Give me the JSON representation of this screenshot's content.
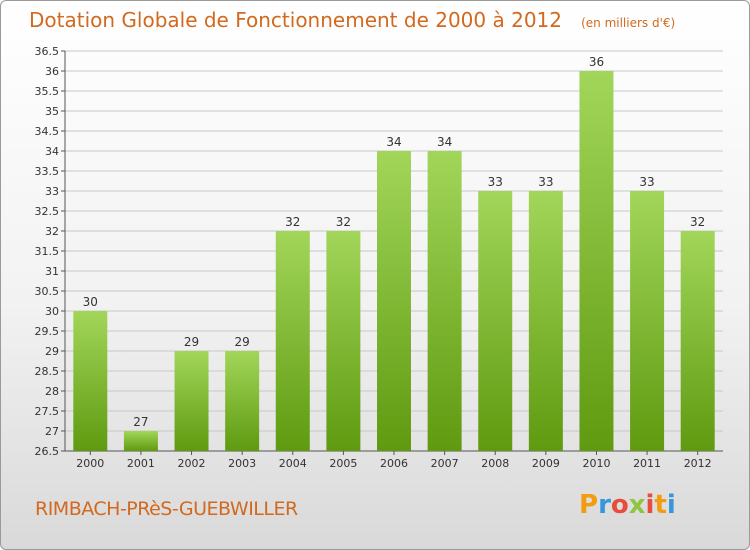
{
  "header": {
    "title": "Dotation Globale de Fonctionnement de 2000 à 2012",
    "subtitle": "(en milliers d'€)"
  },
  "footer": {
    "commune": "RIMBACH-PRèS-GUEBWILLER",
    "brand": "Proxiti",
    "brand_colors": [
      "#f39c12",
      "#3498db",
      "#e74c3c",
      "#8dc63f",
      "#e74c3c",
      "#f39c12",
      "#3498db"
    ]
  },
  "colors": {
    "bar_light": "#a2d65a",
    "bar_dark": "#5f9a10",
    "title": "#d2691e",
    "grid": "#c8c8c8"
  },
  "chart_data": {
    "type": "bar",
    "categories": [
      "2000",
      "2001",
      "2002",
      "2003",
      "2004",
      "2005",
      "2006",
      "2007",
      "2008",
      "2009",
      "2010",
      "2011",
      "2012"
    ],
    "values": [
      30,
      27,
      29,
      29,
      32,
      32,
      34,
      34,
      33,
      33,
      36,
      33,
      32
    ],
    "data_labels": [
      "30",
      "27",
      "29",
      "29",
      "32",
      "32",
      "34",
      "34",
      "33",
      "33",
      "36",
      "33",
      "32"
    ],
    "ylim": [
      26.5,
      36.5
    ],
    "yticks": [
      "26.5",
      "27",
      "27.5",
      "28",
      "28.5",
      "29",
      "29.5",
      "30",
      "30.5",
      "31",
      "31.5",
      "32",
      "32.5",
      "33",
      "33.5",
      "34",
      "34.5",
      "35",
      "35.5",
      "36",
      "36.5"
    ],
    "grid": true,
    "xlabel": "",
    "ylabel": ""
  }
}
